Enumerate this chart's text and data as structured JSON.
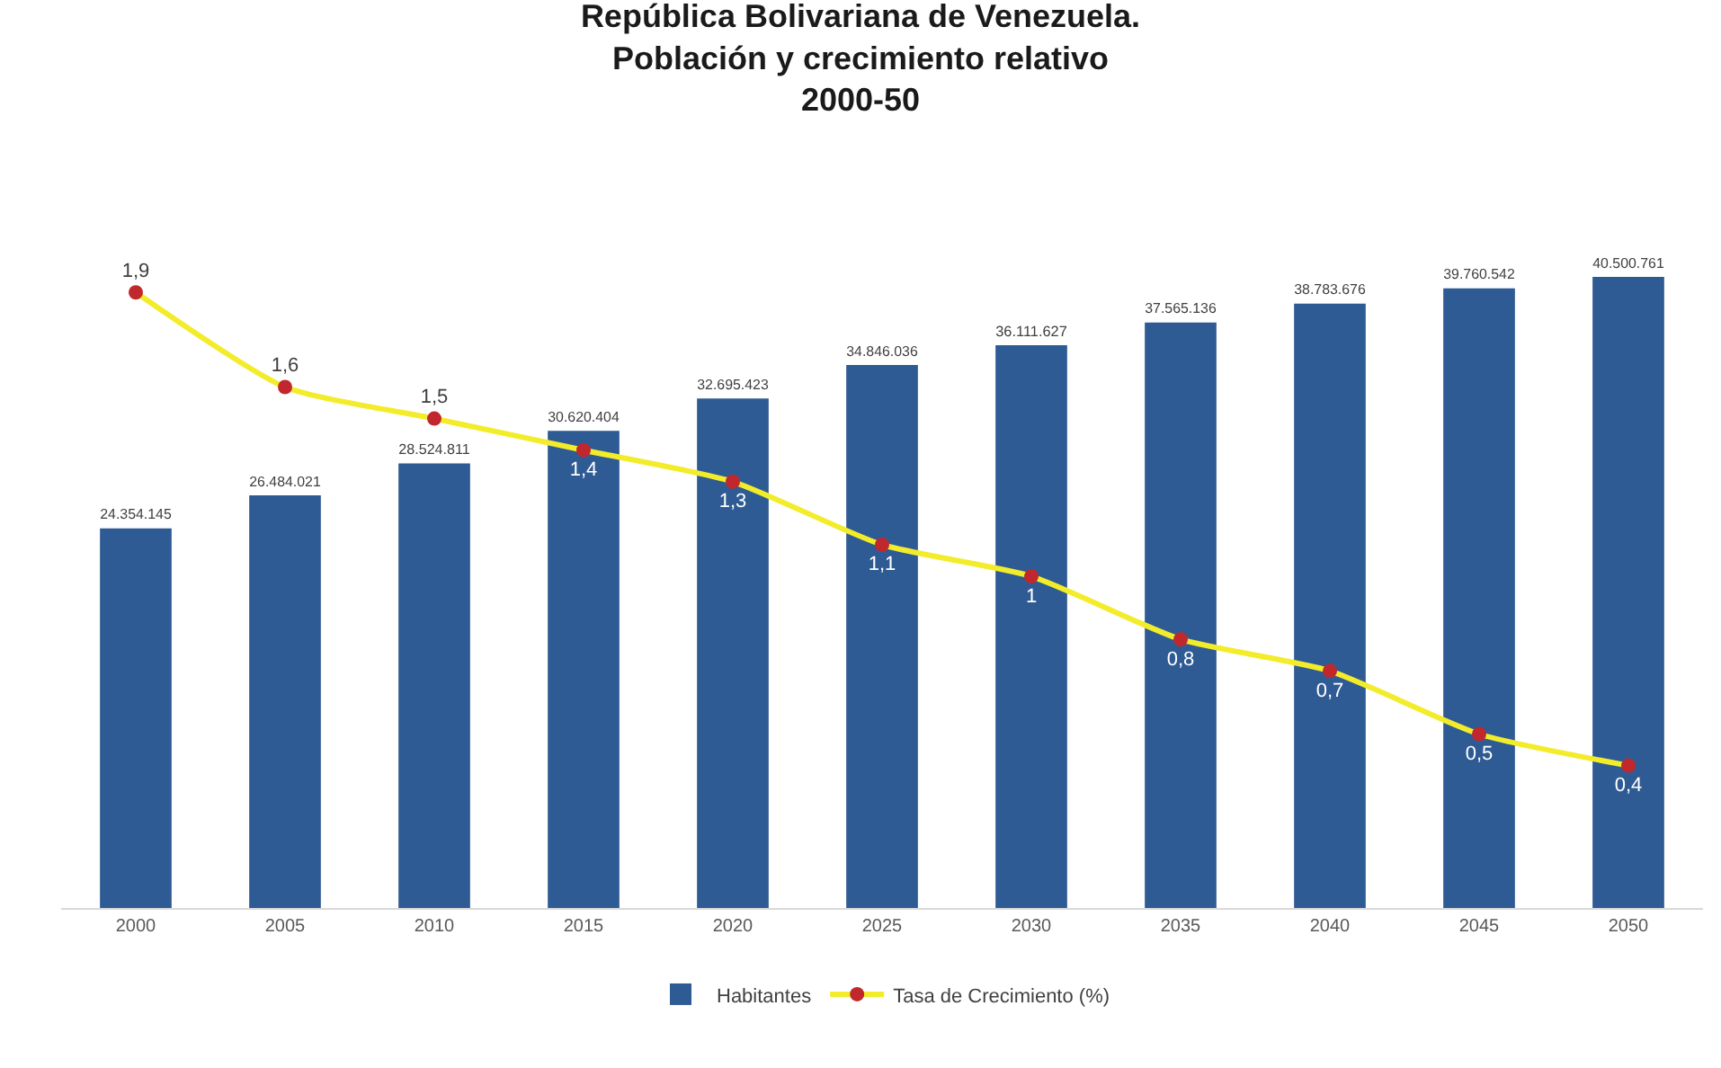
{
  "chart_data": {
    "type": "bar",
    "title": "República Bolivariana de Venezuela.\nPoblación y crecimiento relativo\n2000-50",
    "categories": [
      "2000",
      "2005",
      "2010",
      "2015",
      "2020",
      "2025",
      "2030",
      "2035",
      "2040",
      "2045",
      "2050"
    ],
    "series": [
      {
        "name": "Habitantes",
        "color": "#2f5b94",
        "values": [
          24354145,
          26484021,
          28524811,
          30620404,
          32695423,
          34846036,
          36111627,
          37565136,
          38783676,
          39760542,
          40500761
        ],
        "value_labels": [
          "24.354.145",
          "26.484.021",
          "28.524.811",
          "30.620.404",
          "32.695.423",
          "34.846.036",
          "36.111.627",
          "37.565.136",
          "38.783.676",
          "39.760.542",
          "40.500.761"
        ]
      },
      {
        "name": "Tasa de Crecimiento (%)",
        "type": "line",
        "axis": "y2",
        "color": "#f3ec2a",
        "colors": [
          "#c0282d",
          "#c0282d",
          "#c0282d",
          "#c0282d",
          "#c0282d",
          "#c0282d",
          "#c0282d",
          "#c0282d",
          "#c0282d",
          "#c0282d",
          "#c0282d"
        ],
        "values": [
          1.9,
          1.6,
          1.5,
          1.4,
          1.3,
          1.1,
          1,
          0.8,
          0.7,
          0.5,
          0.4
        ],
        "value_labels": [
          "1,9",
          "1,6",
          "1,5",
          "1,4",
          "1,3",
          "1,1",
          "1",
          "0,8",
          "0,7",
          "0,5",
          "0,4"
        ]
      }
    ],
    "tick_labels": "x",
    "grid": false,
    "legend": "bottom",
    "marker": "circle",
    "line_style": "solid"
  }
}
